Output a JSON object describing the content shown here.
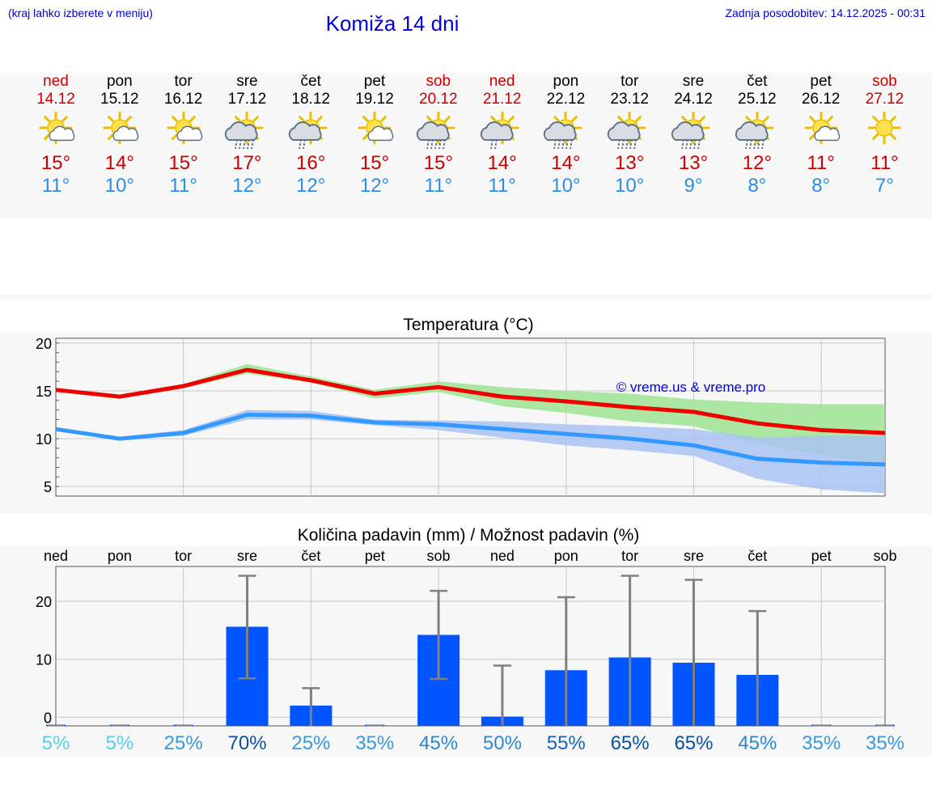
{
  "header": {
    "hint": "(kraj lahko izberete v meniju)",
    "title": "Komiža 14 dni",
    "updated": "Zadnja posodobitev: 14.12.2025 - 00:31"
  },
  "days": [
    {
      "name": "ned",
      "date": "14.12",
      "icon": "sun-cloud-icon",
      "tmax": "15°",
      "tmin": "11°",
      "weekend": true,
      "precip_label": "5%"
    },
    {
      "name": "pon",
      "date": "15.12",
      "icon": "sun-cloud-icon",
      "tmax": "14°",
      "tmin": "10°",
      "weekend": false,
      "precip_label": "5%"
    },
    {
      "name": "tor",
      "date": "16.12",
      "icon": "sun-cloud-icon",
      "tmax": "15°",
      "tmin": "11°",
      "weekend": false,
      "precip_label": "25%"
    },
    {
      "name": "sre",
      "date": "17.12",
      "icon": "sun-cloud-rain-icon",
      "tmax": "17°",
      "tmin": "12°",
      "weekend": false,
      "precip_label": "70%"
    },
    {
      "name": "čet",
      "date": "18.12",
      "icon": "sun-cloud-drizzle-icon",
      "tmax": "16°",
      "tmin": "12°",
      "weekend": false,
      "precip_label": "25%"
    },
    {
      "name": "pet",
      "date": "19.12",
      "icon": "sun-cloud-icon",
      "tmax": "15°",
      "tmin": "12°",
      "weekend": false,
      "precip_label": "35%"
    },
    {
      "name": "sob",
      "date": "20.12",
      "icon": "sun-cloud-rain-icon",
      "tmax": "15°",
      "tmin": "11°",
      "weekend": true,
      "precip_label": "45%"
    },
    {
      "name": "ned",
      "date": "21.12",
      "icon": "sun-cloud-drizzle-icon",
      "tmax": "14°",
      "tmin": "11°",
      "weekend": true,
      "precip_label": "50%"
    },
    {
      "name": "pon",
      "date": "22.12",
      "icon": "sun-cloud-rain-icon",
      "tmax": "14°",
      "tmin": "10°",
      "weekend": false,
      "precip_label": "55%"
    },
    {
      "name": "tor",
      "date": "23.12",
      "icon": "sun-cloud-rain-icon",
      "tmax": "13°",
      "tmin": "10°",
      "weekend": false,
      "precip_label": "65%"
    },
    {
      "name": "sre",
      "date": "24.12",
      "icon": "sun-cloud-rain-icon",
      "tmax": "13°",
      "tmin": "9°",
      "weekend": false,
      "precip_label": "65%"
    },
    {
      "name": "čet",
      "date": "25.12",
      "icon": "sun-cloud-rain-icon",
      "tmax": "12°",
      "tmin": "8°",
      "weekend": false,
      "precip_label": "45%"
    },
    {
      "name": "pet",
      "date": "26.12",
      "icon": "sun-cloud-icon",
      "tmax": "11°",
      "tmin": "8°",
      "weekend": false,
      "precip_label": "35%"
    },
    {
      "name": "sob",
      "date": "27.12",
      "icon": "sun-icon",
      "tmax": "11°",
      "tmin": "7°",
      "weekend": true,
      "precip_label": "35%"
    }
  ],
  "colors": {
    "max_temp": "#ee0000",
    "min_temp": "#3399ff",
    "max_band": "#9ee494",
    "min_band": "#a9c3f2",
    "bar": "#0055ff",
    "error_bar": "#808080"
  },
  "chart_data": [
    {
      "type": "line",
      "title": "Temperatura (°C)",
      "watermark": "© vreme.us & vreme.pro",
      "ylim": [
        4,
        20.5
      ],
      "yticks": [
        "5",
        "10",
        "15",
        "20"
      ],
      "x": [
        0,
        1,
        2,
        3,
        4,
        5,
        6,
        7,
        8,
        9,
        10,
        11,
        12,
        13
      ],
      "series": [
        {
          "name": "max",
          "values": [
            15.1,
            14.4,
            15.5,
            17.2,
            16.1,
            14.7,
            15.4,
            14.4,
            13.9,
            13.3,
            12.8,
            11.6,
            10.9,
            10.6
          ],
          "band_low": [
            15.1,
            14.3,
            15.3,
            16.8,
            15.9,
            14.2,
            14.9,
            13.4,
            12.7,
            11.8,
            11.3,
            9.5,
            8.3,
            7.3
          ],
          "band_high": [
            15.2,
            14.6,
            15.7,
            17.8,
            16.5,
            15.1,
            16.0,
            15.4,
            15.0,
            14.7,
            14.1,
            13.8,
            13.6,
            13.6
          ]
        },
        {
          "name": "min",
          "values": [
            11.0,
            10.0,
            10.6,
            12.5,
            12.4,
            11.7,
            11.5,
            11.0,
            10.5,
            10.0,
            9.3,
            7.9,
            7.5,
            7.3
          ],
          "band_low": [
            11.0,
            9.9,
            10.3,
            12.0,
            12.0,
            11.4,
            10.9,
            10.1,
            9.3,
            8.8,
            8.2,
            5.8,
            4.7,
            4.3
          ],
          "band_high": [
            11.1,
            10.2,
            10.9,
            13.0,
            12.9,
            12.0,
            11.9,
            11.8,
            11.5,
            11.3,
            11.0,
            10.1,
            10.3,
            10.3
          ]
        }
      ]
    },
    {
      "type": "bar",
      "title": "Količina padavin (mm) / Možnost padavin (%)",
      "ylim": [
        -1.5,
        26
      ],
      "yticks": [
        "0",
        "10",
        "20"
      ],
      "categories": [
        "ned",
        "pon",
        "tor",
        "sre",
        "čet",
        "pet",
        "sob",
        "ned",
        "pon",
        "tor",
        "sre",
        "čet",
        "pet",
        "sob"
      ],
      "values": [
        0,
        0,
        0,
        15.6,
        2.0,
        0,
        14.2,
        0.1,
        8.1,
        10.3,
        9.4,
        7.3,
        0,
        0
      ],
      "err_low": [
        0,
        0,
        0,
        6.7,
        0,
        0,
        6.6,
        0,
        0,
        0,
        0,
        0,
        0,
        0
      ],
      "err_high": [
        0,
        0,
        0,
        24.4,
        5.0,
        0,
        21.8,
        8.9,
        20.7,
        24.4,
        23.7,
        18.3,
        0,
        0
      ],
      "probability": [
        5,
        5,
        25,
        70,
        25,
        35,
        45,
        50,
        55,
        65,
        65,
        45,
        35,
        35
      ]
    }
  ]
}
